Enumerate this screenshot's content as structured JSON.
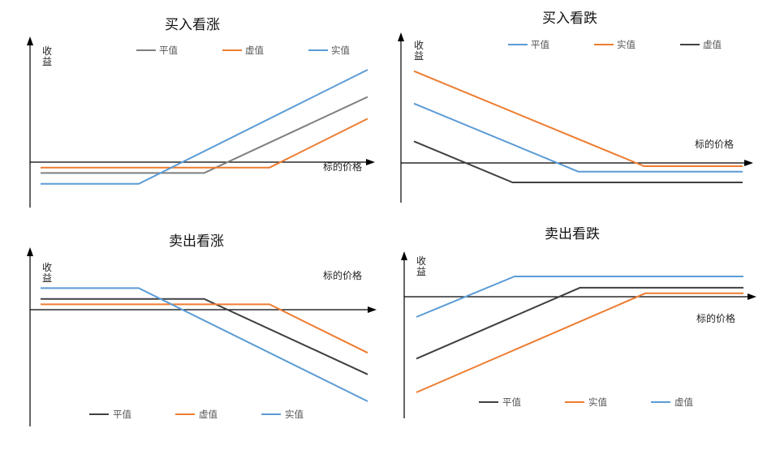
{
  "colors": {
    "atm": "#7f7f7f",
    "atm_dark": "#404040",
    "otm": "#ed7d31",
    "itm": "#5b9bd5",
    "axis": "#000000"
  },
  "chart_data": [
    {
      "type": "line",
      "title": "买入看涨",
      "xlabel": "标的价格",
      "ylabel": [
        "收",
        "益"
      ],
      "x": [
        0,
        100
      ],
      "xlim": [
        0,
        100
      ],
      "ylim": [
        -20,
        80
      ],
      "legend": "top",
      "series": [
        {
          "name": "平值",
          "color": "#7f7f7f",
          "x": [
            0,
            50,
            100
          ],
          "y": [
            -10,
            -10,
            60
          ]
        },
        {
          "name": "虚值",
          "color": "#ed7d31",
          "x": [
            0,
            70,
            100
          ],
          "y": [
            -5,
            -5,
            40
          ]
        },
        {
          "name": "实值",
          "color": "#5b9bd5",
          "x": [
            0,
            30,
            100
          ],
          "y": [
            -20,
            -20,
            85
          ]
        }
      ]
    },
    {
      "type": "line",
      "title": "买入看跌",
      "xlabel": "标的价格",
      "ylabel": [
        "收",
        "益"
      ],
      "xlim": [
        0,
        100
      ],
      "ylim": [
        -20,
        80
      ],
      "legend": "top",
      "series": [
        {
          "name": "平值",
          "color": "#5b9bd5",
          "x": [
            0,
            50,
            100
          ],
          "y": [
            55,
            -8,
            -8
          ]
        },
        {
          "name": "实值",
          "color": "#ed7d31",
          "x": [
            0,
            70,
            100
          ],
          "y": [
            85,
            -3,
            -3
          ]
        },
        {
          "name": "虚值",
          "color": "#404040",
          "x": [
            0,
            30,
            100
          ],
          "y": [
            20,
            -18,
            -18
          ]
        }
      ]
    },
    {
      "type": "line",
      "title": "卖出看涨",
      "xlabel": "标的价格",
      "ylabel": [
        "收",
        "益"
      ],
      "xlim": [
        0,
        100
      ],
      "ylim": [
        -80,
        20
      ],
      "legend": "bottom",
      "series": [
        {
          "name": "平值",
          "color": "#404040",
          "x": [
            0,
            50,
            100
          ],
          "y": [
            10,
            10,
            -60
          ]
        },
        {
          "name": "虚值",
          "color": "#ed7d31",
          "x": [
            0,
            70,
            100
          ],
          "y": [
            5,
            5,
            -40
          ]
        },
        {
          "name": "实值",
          "color": "#5b9bd5",
          "x": [
            0,
            30,
            100
          ],
          "y": [
            20,
            20,
            -85
          ]
        }
      ]
    },
    {
      "type": "line",
      "title": "卖出看跌",
      "xlabel": "标的价格",
      "ylabel": [
        "收",
        "益"
      ],
      "xlim": [
        0,
        100
      ],
      "ylim": [
        -80,
        20
      ],
      "legend": "bottom",
      "series": [
        {
          "name": "平值",
          "color": "#404040",
          "x": [
            0,
            50,
            100
          ],
          "y": [
            -55,
            8,
            8
          ]
        },
        {
          "name": "实值",
          "color": "#ed7d31",
          "x": [
            0,
            70,
            100
          ],
          "y": [
            -85,
            3,
            3
          ]
        },
        {
          "name": "虚值",
          "color": "#5b9bd5",
          "x": [
            0,
            30,
            100
          ],
          "y": [
            -18,
            18,
            18
          ]
        }
      ]
    }
  ]
}
